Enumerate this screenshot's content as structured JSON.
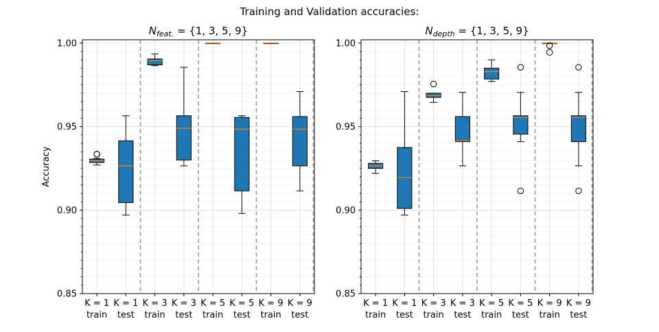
{
  "suptitle": "Training and Validation accuracies:",
  "chart_data": [
    {
      "type": "box",
      "title_main": "N",
      "title_sub": "feat.",
      "title_rest": " = {1, 3, 5, 9}",
      "ylabel": "Accuracy",
      "ylim": [
        0.85,
        1.002
      ],
      "yticks": [
        "1.00",
        "0.95",
        "0.90",
        "0.85"
      ],
      "ytick_values": [
        1.0,
        0.95,
        0.9,
        0.85
      ],
      "categories": [
        {
          "top": "K = 1",
          "bottom": "train"
        },
        {
          "top": "K = 1",
          "bottom": "test"
        },
        {
          "top": "K = 3",
          "bottom": "train"
        },
        {
          "top": "K = 3",
          "bottom": "test"
        },
        {
          "top": "K = 5",
          "bottom": "train"
        },
        {
          "top": "K = 5",
          "bottom": "test"
        },
        {
          "top": "K = 9",
          "bottom": "train"
        },
        {
          "top": "K = 9",
          "bottom": "test"
        }
      ],
      "boxes": [
        {
          "whislo": 0.927,
          "q1": 0.9285,
          "med": 0.9295,
          "q3": 0.9305,
          "whishi": 0.931,
          "fliers": [
            0.9335,
            0.9335
          ]
        },
        {
          "whislo": 0.897,
          "q1": 0.9045,
          "med": 0.9265,
          "q3": 0.9415,
          "whishi": 0.9565,
          "fliers": []
        },
        {
          "whislo": 0.9865,
          "q1": 0.987,
          "med": 0.9895,
          "q3": 0.9905,
          "whishi": 0.9935,
          "fliers": []
        },
        {
          "whislo": 0.9265,
          "q1": 0.93,
          "med": 0.949,
          "q3": 0.9565,
          "whishi": 0.9855,
          "fliers": []
        },
        {
          "whislo": 1.0,
          "q1": 1.0,
          "med": 1.0,
          "q3": 1.0,
          "whishi": 1.0,
          "fliers": []
        },
        {
          "whislo": 0.898,
          "q1": 0.9115,
          "med": 0.9485,
          "q3": 0.9555,
          "whishi": 0.9565,
          "fliers": []
        },
        {
          "whislo": 1.0,
          "q1": 1.0,
          "med": 1.0,
          "q3": 1.0,
          "whishi": 1.0,
          "fliers": []
        },
        {
          "whislo": 0.9115,
          "q1": 0.9265,
          "med": 0.9485,
          "q3": 0.956,
          "whishi": 0.971,
          "fliers": []
        }
      ],
      "separators_after": [
        2,
        4,
        6
      ],
      "grid": true
    },
    {
      "type": "box",
      "title_main": "N",
      "title_sub": "depth",
      "title_rest": " = {1, 3, 5, 9}",
      "ylabel": "",
      "ylim": [
        0.85,
        1.002
      ],
      "yticks": [
        "1.00",
        "0.95",
        "0.90",
        "0.85"
      ],
      "ytick_values": [
        1.0,
        0.95,
        0.9,
        0.85
      ],
      "categories": [
        {
          "top": "K = 1",
          "bottom": "train"
        },
        {
          "top": "K = 1",
          "bottom": "test"
        },
        {
          "top": "K = 3",
          "bottom": "train"
        },
        {
          "top": "K = 3",
          "bottom": "test"
        },
        {
          "top": "K = 5",
          "bottom": "train"
        },
        {
          "top": "K = 5",
          "bottom": "test"
        },
        {
          "top": "K = 9",
          "bottom": "train"
        },
        {
          "top": "K = 9",
          "bottom": "test"
        }
      ],
      "boxes": [
        {
          "whislo": 0.922,
          "q1": 0.925,
          "med": 0.9265,
          "q3": 0.928,
          "whishi": 0.9295,
          "fliers": []
        },
        {
          "whislo": 0.897,
          "q1": 0.901,
          "med": 0.9195,
          "q3": 0.9375,
          "whishi": 0.971,
          "fliers": []
        },
        {
          "whislo": 0.9645,
          "q1": 0.9675,
          "med": 0.9685,
          "q3": 0.97,
          "whishi": 0.97,
          "fliers": [
            0.9755
          ]
        },
        {
          "whislo": 0.9265,
          "q1": 0.941,
          "med": 0.9415,
          "q3": 0.956,
          "whishi": 0.9705,
          "fliers": []
        },
        {
          "whislo": 0.977,
          "q1": 0.9785,
          "med": 0.983,
          "q3": 0.985,
          "whishi": 0.99,
          "fliers": []
        },
        {
          "whislo": 0.941,
          "q1": 0.9455,
          "med": 0.9555,
          "q3": 0.9565,
          "whishi": 0.9705,
          "fliers": [
            0.9115,
            0.9855
          ]
        },
        {
          "whislo": 1.0,
          "q1": 1.0,
          "med": 1.0,
          "q3": 1.0,
          "whishi": 1.0,
          "fliers": [
            0.9945,
            0.9985
          ]
        },
        {
          "whislo": 0.9265,
          "q1": 0.941,
          "med": 0.9555,
          "q3": 0.9565,
          "whishi": 0.9705,
          "fliers": [
            0.9115,
            0.9855
          ]
        }
      ],
      "separators_after": [
        2,
        4,
        6
      ],
      "grid": true
    }
  ]
}
